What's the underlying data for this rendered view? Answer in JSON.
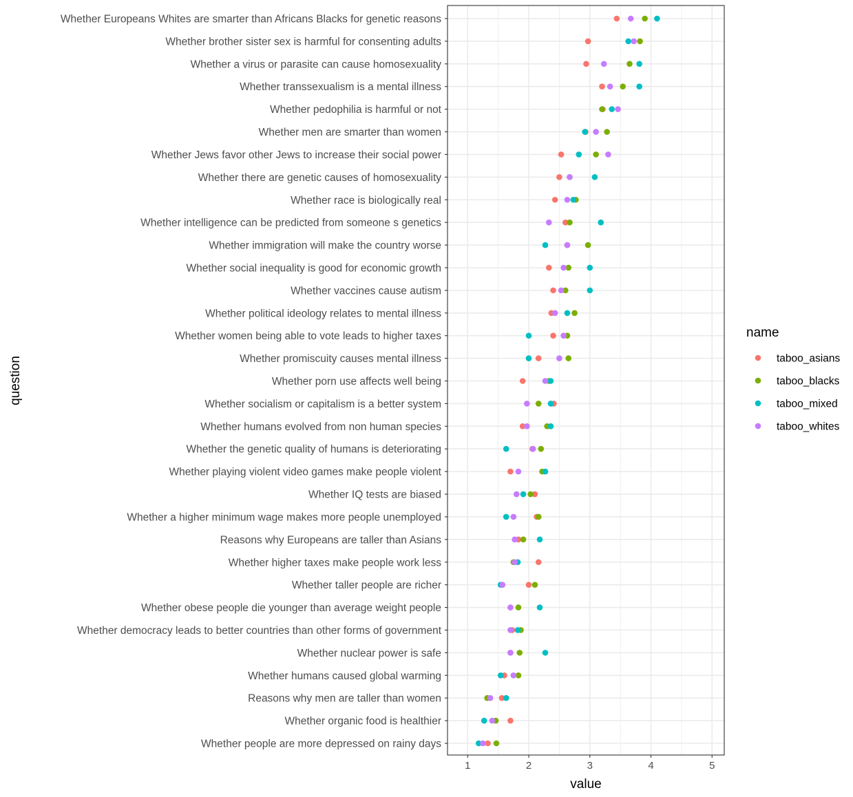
{
  "chart_data": {
    "type": "scatter",
    "xlabel": "value",
    "ylabel": "question",
    "xlim": [
      0.67,
      5.2
    ],
    "xticks": [
      1,
      2,
      3,
      4,
      5
    ],
    "grid": true,
    "legend": {
      "title": "name",
      "position": "right"
    },
    "categories": [
      "Whether Europeans Whites are smarter than Africans Blacks for genetic reasons",
      "Whether brother sister sex is harmful for consenting adults",
      "Whether a virus or parasite can cause homosexuality",
      "Whether transsexualism is a mental illness",
      "Whether pedophilia is harmful or not",
      "Whether men are smarter than women",
      "Whether Jews favor other Jews to increase their social power",
      "Whether there are genetic causes of homosexuality",
      "Whether race is biologically real",
      "Whether intelligence can be predicted from someone s genetics",
      "Whether immigration will make the country worse",
      "Whether social inequality is good for economic growth",
      "Whether vaccines cause autism",
      "Whether political ideology relates to mental illness",
      "Whether women being able to vote leads to higher taxes",
      "Whether promiscuity causes mental illness",
      "Whether porn use affects well being",
      "Whether socialism or capitalism is a better system",
      "Whether humans evolved from non human species",
      "Whether the genetic quality of humans is deteriorating",
      "Whether playing violent video games make people violent",
      "Whether IQ tests are biased",
      "Whether a higher minimum wage makes more people unemployed",
      "Reasons why Europeans are taller than Asians",
      "Whether higher taxes make people work less",
      "Whether taller people are richer",
      "Whether obese people die younger than average weight people",
      "Whether democracy leads to better countries than other forms of government",
      "Whether nuclear power is safe",
      "Whether humans caused global warming",
      "Reasons why men are taller than women",
      "Whether organic food is healthier",
      "Whether people are more depressed on rainy days"
    ],
    "series": [
      {
        "name": "taboo_asians",
        "color": "#F8766D",
        "values": [
          3.44,
          2.97,
          2.94,
          3.2,
          3.21,
          2.93,
          2.53,
          2.5,
          2.43,
          2.6,
          2.63,
          2.33,
          2.4,
          2.37,
          2.4,
          2.16,
          1.9,
          2.41,
          1.9,
          2.06,
          1.7,
          2.1,
          2.13,
          1.83,
          2.16,
          2.0,
          1.7,
          1.73,
          1.7,
          1.6,
          1.56,
          1.7,
          1.33
        ]
      },
      {
        "name": "taboo_blacks",
        "color": "#7CAE00",
        "values": [
          3.9,
          3.82,
          3.65,
          3.54,
          3.2,
          3.28,
          3.1,
          2.67,
          2.77,
          2.67,
          2.97,
          2.65,
          2.6,
          2.75,
          2.63,
          2.65,
          2.33,
          2.16,
          2.3,
          2.2,
          2.22,
          2.03,
          2.16,
          1.91,
          1.75,
          2.1,
          1.83,
          1.87,
          1.85,
          1.83,
          1.32,
          1.46,
          1.47
        ]
      },
      {
        "name": "taboo_mixed",
        "color": "#00BFC4",
        "values": [
          4.1,
          3.63,
          3.81,
          3.81,
          3.36,
          2.92,
          2.82,
          3.08,
          2.73,
          3.18,
          2.27,
          3.0,
          3.0,
          2.63,
          2.0,
          2.0,
          2.36,
          2.36,
          2.36,
          1.63,
          2.27,
          1.91,
          1.63,
          2.18,
          1.82,
          1.54,
          2.18,
          1.82,
          2.27,
          1.54,
          1.63,
          1.27,
          1.18
        ]
      },
      {
        "name": "taboo_whites",
        "color": "#C77CFF",
        "values": [
          3.67,
          3.72,
          3.23,
          3.33,
          3.46,
          3.1,
          3.3,
          2.67,
          2.63,
          2.33,
          2.63,
          2.57,
          2.53,
          2.43,
          2.57,
          2.5,
          2.27,
          1.97,
          1.97,
          2.07,
          1.83,
          1.8,
          1.75,
          1.77,
          1.77,
          1.57,
          1.7,
          1.7,
          1.7,
          1.75,
          1.37,
          1.4,
          1.25
        ]
      }
    ]
  }
}
